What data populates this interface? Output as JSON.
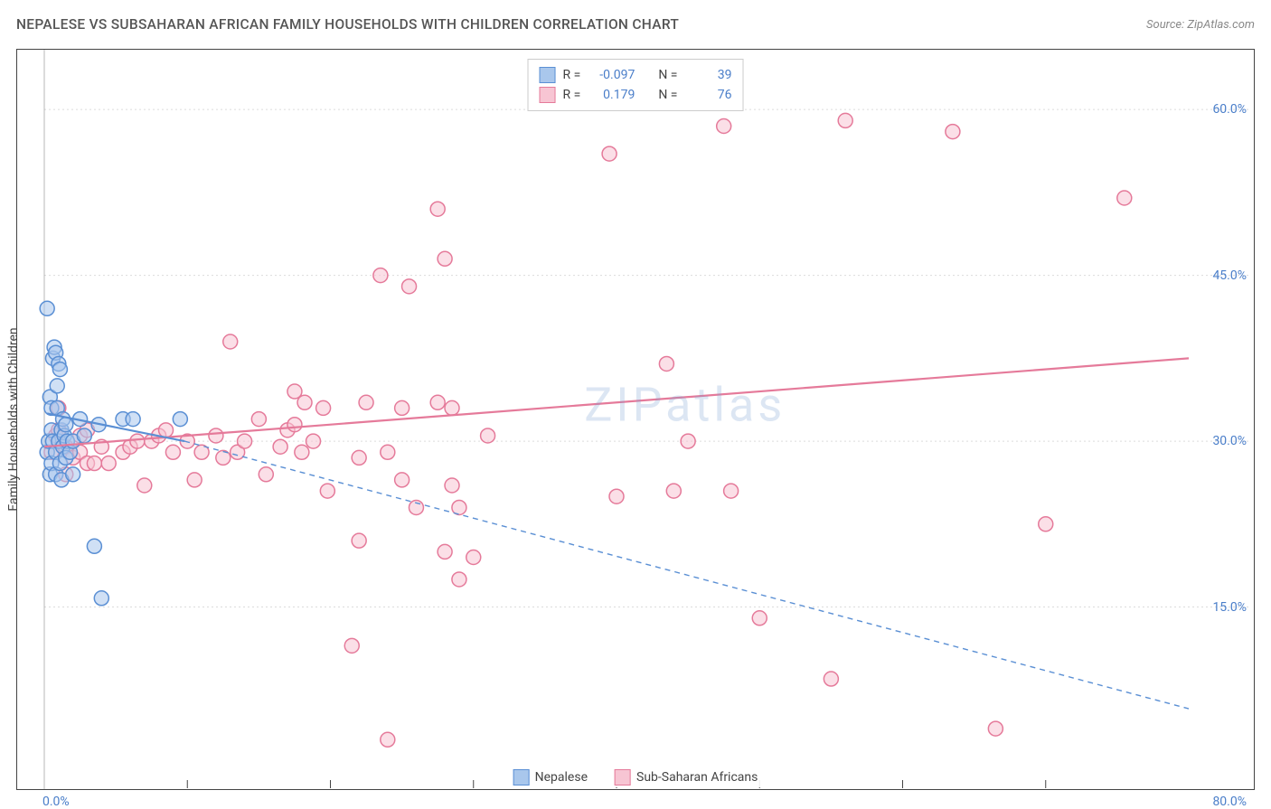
{
  "header": {
    "title": "NEPALESE VS SUBSAHARAN AFRICAN FAMILY HOUSEHOLDS WITH CHILDREN CORRELATION CHART",
    "source": "Source: ZipAtlas.com"
  },
  "chart": {
    "type": "scatter",
    "ylabel": "Family Households with Children",
    "watermark": "ZIPatlas",
    "background_color": "#ffffff",
    "grid_color": "#dcdcdc",
    "axis_color": "#444444",
    "xlim": [
      0,
      80
    ],
    "ylim": [
      0,
      65
    ],
    "x_ticks_minor": [
      10,
      20,
      30,
      40,
      50,
      60,
      70
    ],
    "y_ticks": [
      15,
      30,
      45,
      60
    ],
    "y_tick_labels": [
      "15.0%",
      "30.0%",
      "45.0%",
      "60.0%"
    ],
    "x_origin_label": "0.0%",
    "x_max_label": "80.0%",
    "marker_radius": 8,
    "marker_stroke_width": 1.5,
    "series": {
      "nepalese": {
        "label": "Nepalese",
        "fill": "#a9c7ec",
        "stroke": "#5a8fd4",
        "r_value": "-0.097",
        "n_value": "39",
        "trend": {
          "x1": 0.2,
          "y1": 32.5,
          "x2": 9.8,
          "y2": 30.0,
          "width": 2.2,
          "dash": "none"
        },
        "trend_extrapolate": {
          "x1": 9.8,
          "y1": 30.0,
          "x2": 80,
          "y2": 5.8,
          "width": 1.4,
          "dash": "6,5"
        },
        "points": [
          [
            0.2,
            42
          ],
          [
            0.2,
            29
          ],
          [
            0.3,
            30
          ],
          [
            0.4,
            34
          ],
          [
            0.4,
            27
          ],
          [
            0.5,
            31
          ],
          [
            0.5,
            33
          ],
          [
            0.5,
            28
          ],
          [
            0.6,
            30
          ],
          [
            0.6,
            37.5
          ],
          [
            0.7,
            38.5
          ],
          [
            0.8,
            29
          ],
          [
            0.8,
            38
          ],
          [
            0.8,
            27
          ],
          [
            0.9,
            35
          ],
          [
            0.9,
            33
          ],
          [
            1.0,
            37
          ],
          [
            1.0,
            30
          ],
          [
            1.1,
            36.5
          ],
          [
            1.1,
            28
          ],
          [
            1.2,
            31
          ],
          [
            1.2,
            26.5
          ],
          [
            1.3,
            29.5
          ],
          [
            1.3,
            32
          ],
          [
            1.4,
            30.5
          ],
          [
            1.5,
            28.5
          ],
          [
            1.5,
            31.5
          ],
          [
            1.6,
            30
          ],
          [
            1.8,
            29
          ],
          [
            2.0,
            27
          ],
          [
            2.0,
            30
          ],
          [
            2.5,
            32
          ],
          [
            2.8,
            30.5
          ],
          [
            3.5,
            20.5
          ],
          [
            3.8,
            31.5
          ],
          [
            4.0,
            15.8
          ],
          [
            5.5,
            32
          ],
          [
            6.2,
            32
          ],
          [
            9.5,
            32
          ]
        ]
      },
      "subsaharan": {
        "label": "Sub-Saharan Africans",
        "fill": "#f7c5d3",
        "stroke": "#e57a9a",
        "r_value": "0.179",
        "n_value": "76",
        "trend": {
          "x1": 0,
          "y1": 29.5,
          "x2": 80,
          "y2": 37.5,
          "width": 2.2,
          "dash": "none"
        },
        "points": [
          [
            0.5,
            29
          ],
          [
            0.8,
            30.5
          ],
          [
            1.0,
            33
          ],
          [
            1.0,
            31
          ],
          [
            1.5,
            27
          ],
          [
            1.5,
            29.5
          ],
          [
            2.0,
            28.5
          ],
          [
            2.5,
            29
          ],
          [
            2.5,
            30.5
          ],
          [
            3.0,
            28
          ],
          [
            3.0,
            31
          ],
          [
            3.5,
            28
          ],
          [
            4.0,
            29.5
          ],
          [
            4.5,
            28
          ],
          [
            5.5,
            29
          ],
          [
            6.0,
            29.5
          ],
          [
            6.5,
            30
          ],
          [
            7.0,
            26
          ],
          [
            7.5,
            30
          ],
          [
            8.0,
            30.5
          ],
          [
            8.5,
            31
          ],
          [
            9.0,
            29
          ],
          [
            10.0,
            30
          ],
          [
            10.5,
            26.5
          ],
          [
            11.0,
            29
          ],
          [
            12.0,
            30.5
          ],
          [
            12.5,
            28.5
          ],
          [
            13.0,
            39
          ],
          [
            13.5,
            29
          ],
          [
            14.0,
            30
          ],
          [
            15.0,
            32
          ],
          [
            15.5,
            27
          ],
          [
            16.5,
            29.5
          ],
          [
            17.0,
            31
          ],
          [
            17.5,
            34.5
          ],
          [
            17.5,
            31.5
          ],
          [
            18.0,
            29
          ],
          [
            18.2,
            33.5
          ],
          [
            18.8,
            30
          ],
          [
            19.5,
            33
          ],
          [
            19.8,
            25.5
          ],
          [
            21.5,
            11.5
          ],
          [
            22.0,
            21
          ],
          [
            22.0,
            28.5
          ],
          [
            22.5,
            33.5
          ],
          [
            23.5,
            45
          ],
          [
            24.0,
            29
          ],
          [
            24.0,
            3
          ],
          [
            25.0,
            26.5
          ],
          [
            25.0,
            33
          ],
          [
            25.5,
            44
          ],
          [
            26.0,
            24
          ],
          [
            27.5,
            51
          ],
          [
            27.5,
            33.5
          ],
          [
            28.0,
            20
          ],
          [
            28.0,
            46.5
          ],
          [
            28.5,
            26
          ],
          [
            28.5,
            33
          ],
          [
            29.0,
            24
          ],
          [
            29.0,
            17.5
          ],
          [
            30.0,
            19.5
          ],
          [
            31.0,
            30.5
          ],
          [
            39.5,
            56
          ],
          [
            40.0,
            25
          ],
          [
            43.5,
            37
          ],
          [
            44.0,
            25.5
          ],
          [
            45.0,
            30
          ],
          [
            47.5,
            58.5
          ],
          [
            48.0,
            25.5
          ],
          [
            50.0,
            14
          ],
          [
            55.0,
            8.5
          ],
          [
            56.0,
            59
          ],
          [
            63.5,
            58
          ],
          [
            66.5,
            4
          ],
          [
            70.0,
            22.5
          ],
          [
            75.5,
            52
          ]
        ]
      }
    }
  },
  "top_legend": {
    "rows": [
      {
        "swatch_fill": "#a9c7ec",
        "swatch_stroke": "#5a8fd4",
        "r": "-0.097",
        "n": "39"
      },
      {
        "swatch_fill": "#f7c5d3",
        "swatch_stroke": "#e57a9a",
        "r": "0.179",
        "n": "76"
      }
    ],
    "r_label": "R =",
    "n_label": "N ="
  }
}
